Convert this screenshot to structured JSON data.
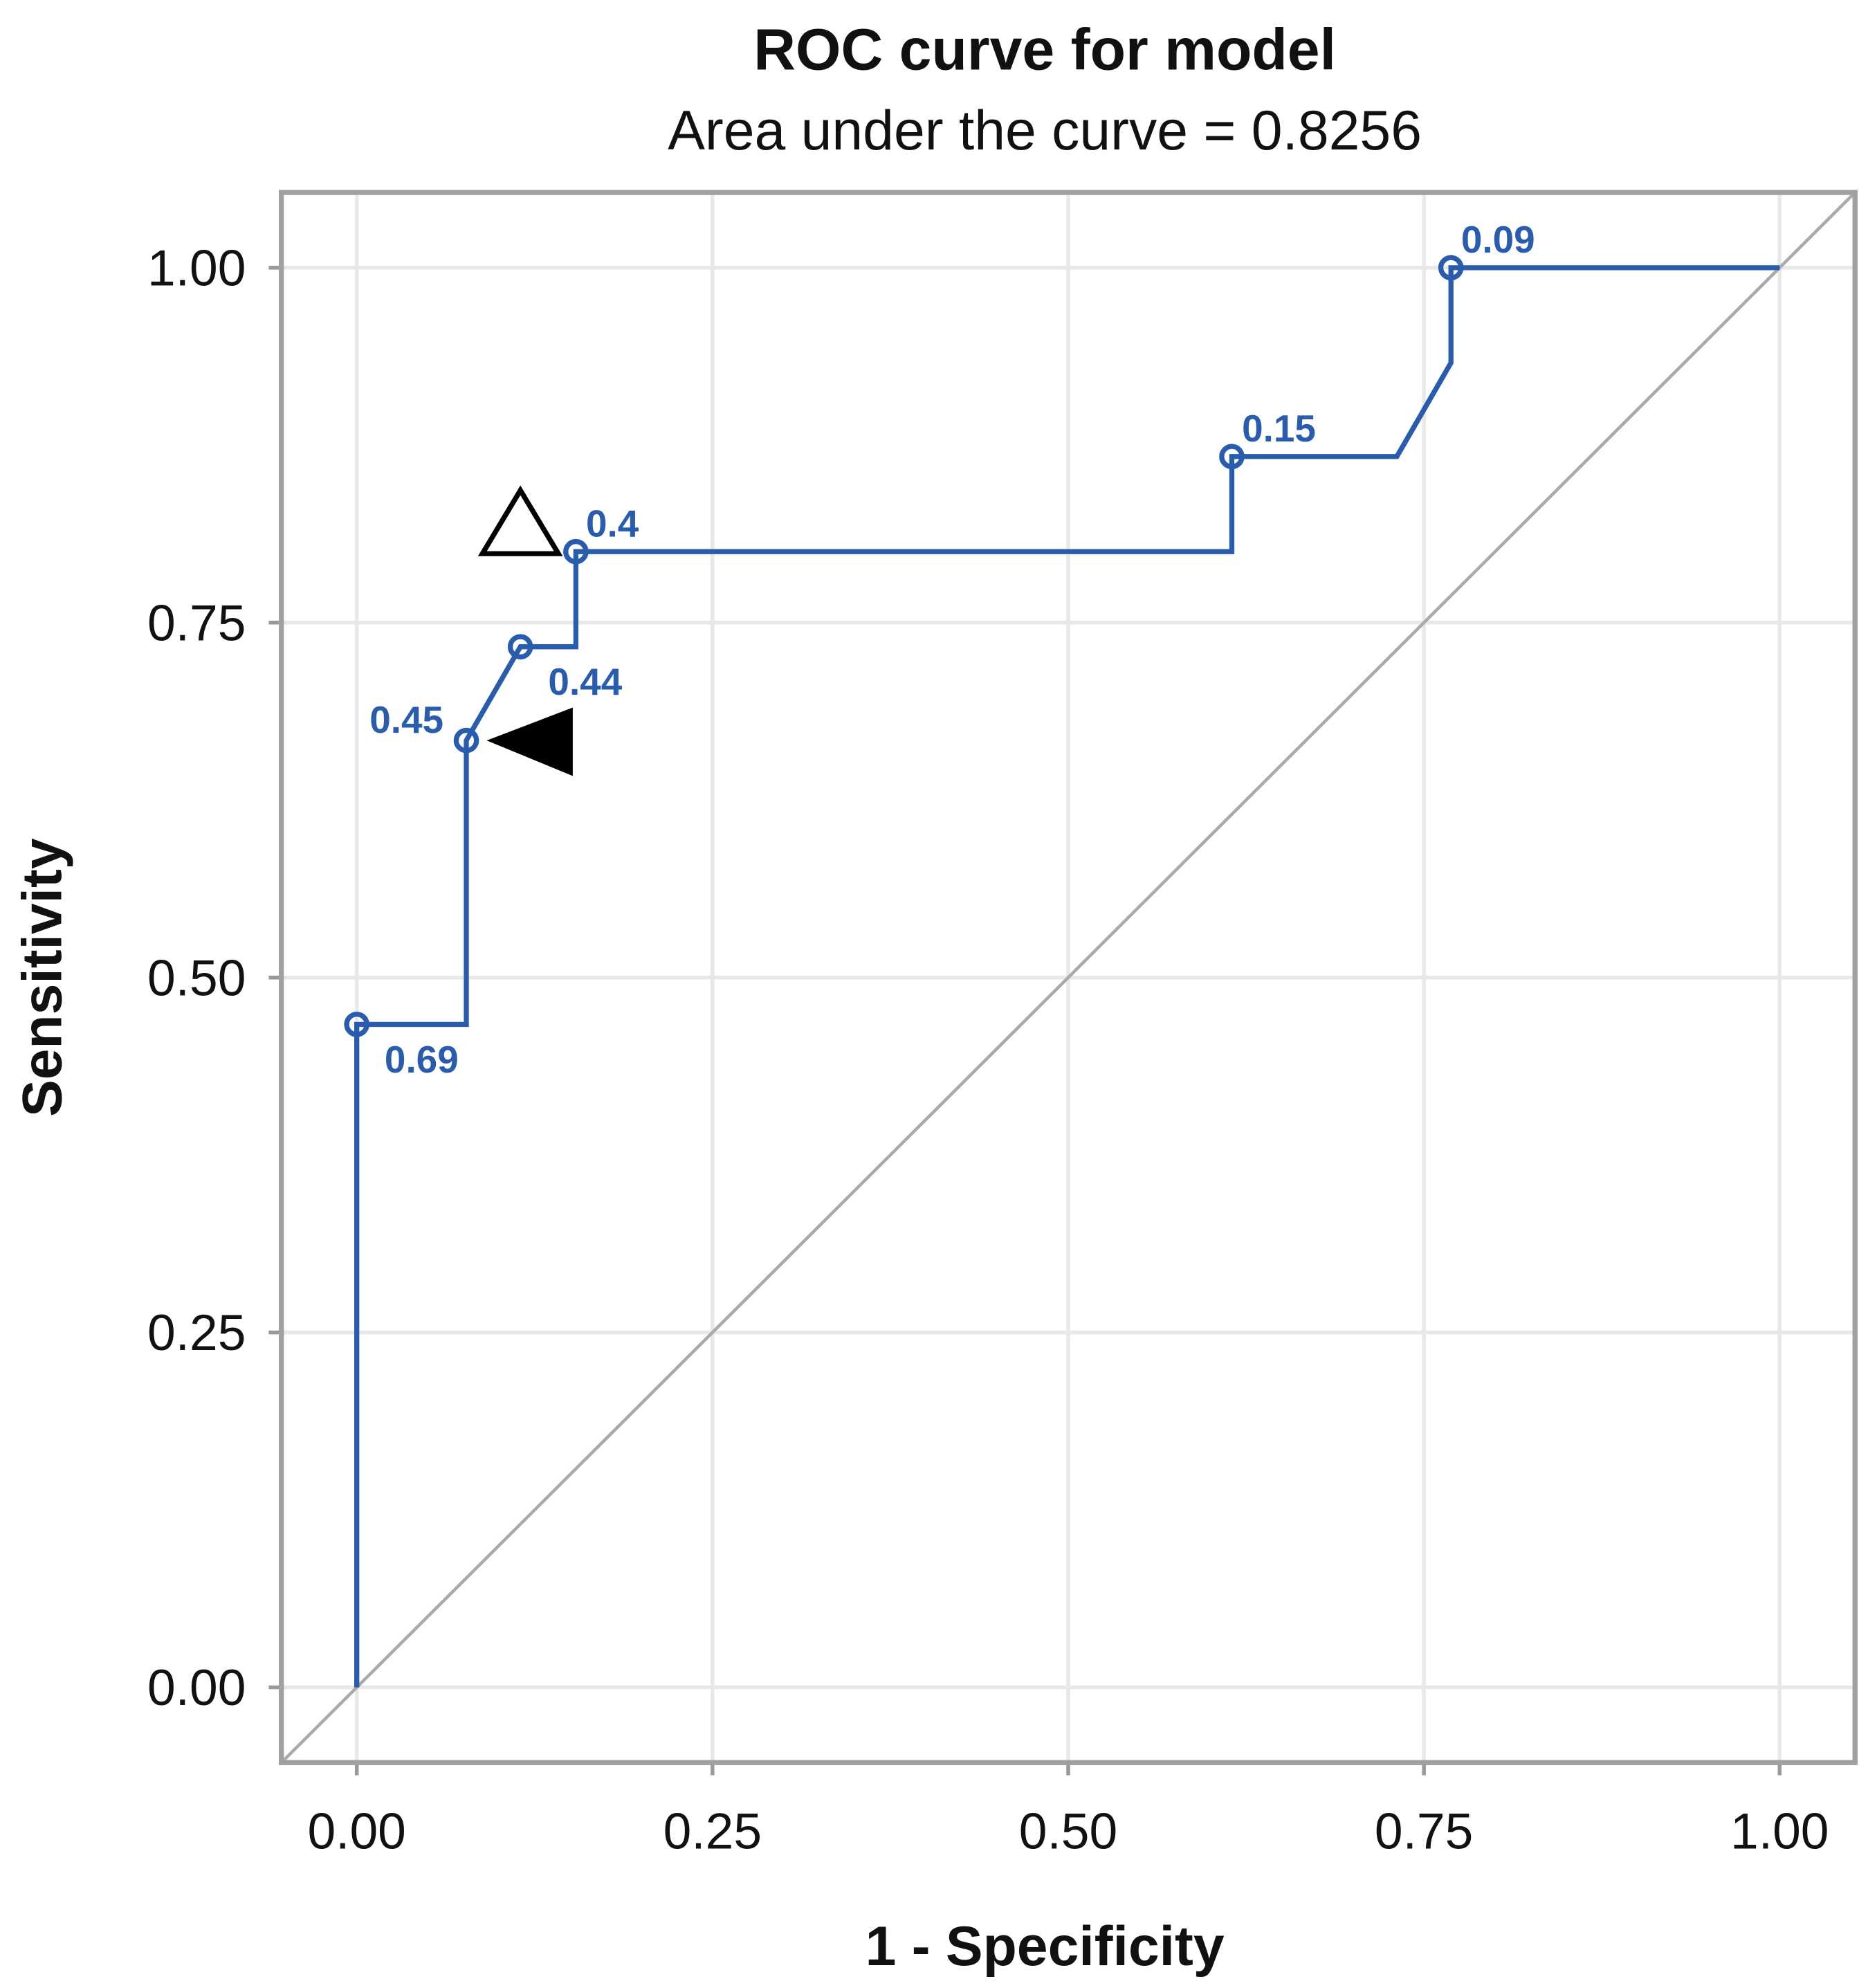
{
  "chart_data": {
    "type": "line",
    "title": "ROC curve for model",
    "subtitle": "Area under the curve = 0.8256",
    "xlabel": "1 - Specificity",
    "ylabel": "Sensitivity",
    "xlim": [
      -0.053,
      1.053
    ],
    "ylim": [
      -0.053,
      1.053
    ],
    "xticks": [
      "0.00",
      "0.25",
      "0.50",
      "0.75",
      "1.00"
    ],
    "yticks": [
      "0.00",
      "0.25",
      "0.50",
      "0.75",
      "1.00"
    ],
    "grid": true,
    "curve": {
      "color": "#2a5cad",
      "points": [
        [
          0,
          0
        ],
        [
          0,
          0.467
        ],
        [
          0.077,
          0.467
        ],
        [
          0.077,
          0.667
        ],
        [
          0.115,
          0.733
        ],
        [
          0.154,
          0.733
        ],
        [
          0.154,
          0.8
        ],
        [
          0.615,
          0.8
        ],
        [
          0.615,
          0.867
        ],
        [
          0.731,
          0.867
        ],
        [
          0.769,
          0.933
        ],
        [
          0.769,
          1
        ],
        [
          1,
          1
        ]
      ]
    },
    "thresholds": [
      {
        "x": 0,
        "y": 0.467,
        "label": "0.69",
        "pos": "below-right"
      },
      {
        "x": 0.077,
        "y": 0.667,
        "label": "0.45",
        "pos": "above-left"
      },
      {
        "x": 0.115,
        "y": 0.733,
        "label": "0.44",
        "pos": "below-right"
      },
      {
        "x": 0.154,
        "y": 0.8,
        "label": "0.4",
        "pos": "above-right"
      },
      {
        "x": 0.615,
        "y": 0.867,
        "label": "0.15",
        "pos": "above-right"
      },
      {
        "x": 0.769,
        "y": 1,
        "label": "0.09",
        "pos": "above-right"
      }
    ],
    "reference_line": {
      "type": "diagonal",
      "color": "#aaaaaa"
    },
    "annotations": [
      {
        "shape": "open-triangle-up",
        "x": 0.115,
        "y": 0.82,
        "color": "#000000"
      },
      {
        "shape": "filled-triangle-left",
        "x": 0.118,
        "y": 0.667,
        "color": "#000000"
      }
    ]
  }
}
